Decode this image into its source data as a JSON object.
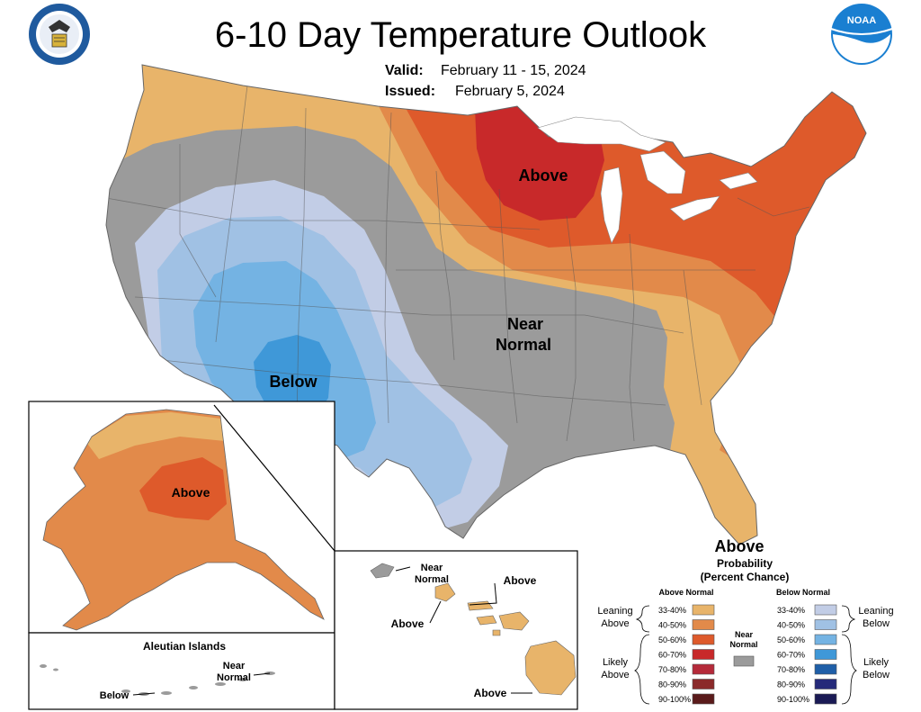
{
  "title": "6-10 Day Temperature Outlook",
  "valid": {
    "label": "Valid:",
    "value": "February 11 - 15, 2024"
  },
  "issued": {
    "label": "Issued:",
    "value": "February 5, 2024"
  },
  "logos": {
    "left": "department-of-commerce-seal",
    "right": "noaa-logo",
    "right_text": "NOAA"
  },
  "map_labels": {
    "above": "Above",
    "near": "Near",
    "normal": "Normal",
    "below": "Below",
    "ak_above": "Above",
    "aleutian_title": "Aleutian Islands",
    "aleutian_near": "Near",
    "aleutian_normal": "Normal",
    "aleutian_below": "Below",
    "hi_near": "Near",
    "hi_normal": "Normal",
    "hi_above_1": "Above",
    "hi_above_2": "Above",
    "hi_above_3": "Above"
  },
  "legend": {
    "heading": "Above",
    "probability": "Probability",
    "percent_chance": "(Percent Chance)",
    "above_normal": "Above Normal",
    "below_normal": "Below Normal",
    "near_normal_1": "Near",
    "near_normal_2": "Normal",
    "leaning_above_1": "Leaning",
    "leaning_above_2": "Above",
    "likely_above_1": "Likely",
    "likely_above_2": "Above",
    "leaning_below_1": "Leaning",
    "leaning_below_2": "Below",
    "likely_below_1": "Likely",
    "likely_below_2": "Below",
    "above_bins": [
      {
        "range": "33-40%",
        "color": "#e8b46a"
      },
      {
        "range": "40-50%",
        "color": "#e28a4a"
      },
      {
        "range": "50-60%",
        "color": "#de5a2b"
      },
      {
        "range": "60-70%",
        "color": "#c8292a"
      },
      {
        "range": "70-80%",
        "color": "#b52a3a"
      },
      {
        "range": "80-90%",
        "color": "#8b2a2a"
      },
      {
        "range": "90-100%",
        "color": "#5a1a1a"
      }
    ],
    "below_bins": [
      {
        "range": "33-40%",
        "color": "#c2cde6"
      },
      {
        "range": "40-50%",
        "color": "#a0c1e4"
      },
      {
        "range": "50-60%",
        "color": "#74b3e3"
      },
      {
        "range": "60-70%",
        "color": "#3f98d8"
      },
      {
        "range": "70-80%",
        "color": "#1f5fa8"
      },
      {
        "range": "80-90%",
        "color": "#252a7a"
      },
      {
        "range": "90-100%",
        "color": "#1a1a55"
      }
    ],
    "near_color": "#9b9b9b"
  }
}
